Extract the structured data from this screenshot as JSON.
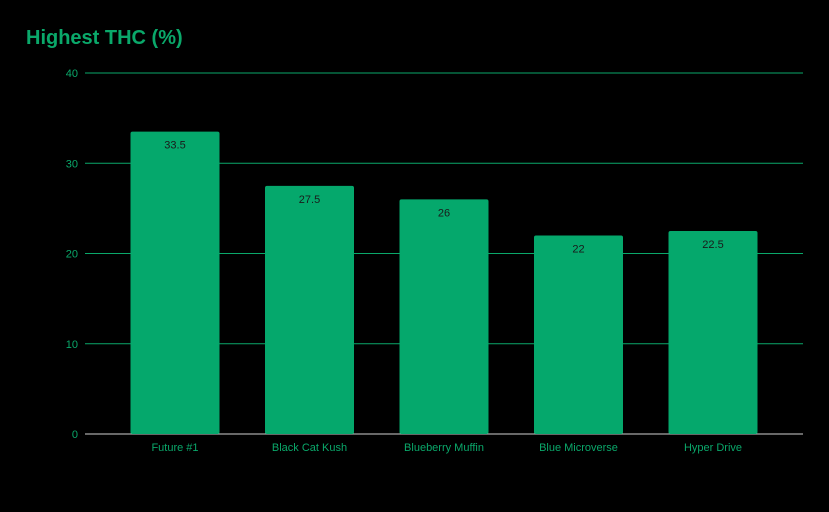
{
  "chart_data": {
    "type": "bar",
    "title": "Highest THC (%)",
    "xlabel": "",
    "ylabel": "",
    "categories": [
      "Future #1",
      "Black Cat Kush",
      "Blueberry Muffin",
      "Blue Microverse",
      "Hyper Drive"
    ],
    "values": [
      33.5,
      27.5,
      26,
      22,
      22.5
    ],
    "data_labels": [
      "33.5",
      "27.5",
      "26",
      "22",
      "22.5"
    ],
    "ylim": [
      0,
      40
    ],
    "yticks": [
      0,
      10,
      20,
      30,
      40
    ],
    "grid": true,
    "legend": "none",
    "colors": {
      "bar": "#05a86c",
      "grid": "#0aa86a",
      "axis_text": "#0aa86a",
      "title": "#0aa86a",
      "data_label": "#1a1a1a",
      "background": "#000000"
    }
  }
}
